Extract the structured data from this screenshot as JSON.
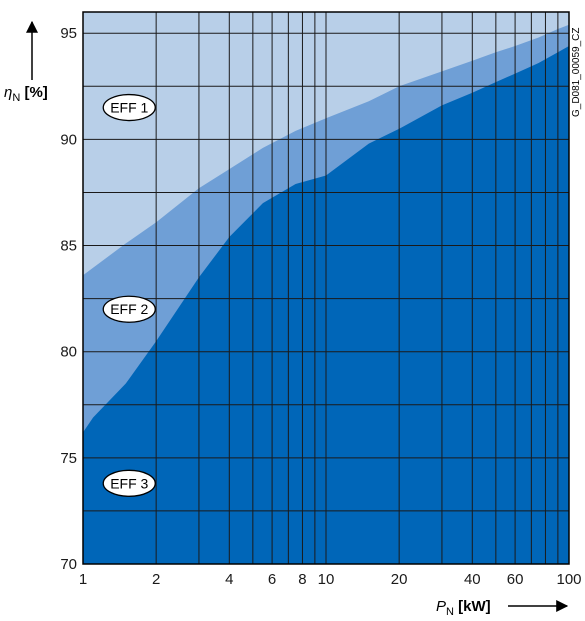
{
  "chart_data": {
    "type": "area",
    "x_scale": "log",
    "xlim": [
      1,
      100
    ],
    "ylim": [
      70,
      96
    ],
    "x_ticks": [
      1,
      2,
      4,
      6,
      8,
      10,
      20,
      40,
      60,
      100
    ],
    "x_tick_labels": [
      "1",
      "2",
      "4",
      "6",
      "8",
      "10",
      "20",
      "40",
      "60",
      "100"
    ],
    "x_gridlines": [
      1,
      2,
      3,
      4,
      5,
      6,
      7,
      8,
      9,
      10,
      20,
      30,
      40,
      50,
      60,
      70,
      80,
      90,
      100
    ],
    "y_ticks": [
      70,
      75,
      80,
      85,
      90,
      95
    ],
    "y_tick_labels": [
      "70",
      "75",
      "80",
      "85",
      "90",
      "95"
    ],
    "y_gridlines": [
      72.5,
      75,
      77.5,
      80,
      82.5,
      85,
      87.5,
      90,
      92.5,
      95
    ],
    "xlabel": {
      "symbol": "P",
      "sub": "N",
      "unit": "[kW]"
    },
    "ylabel": {
      "symbol": "η",
      "sub": "N",
      "unit": "[%]"
    },
    "grid": true,
    "regions": [
      {
        "label": "EFF 1",
        "color": "#b8cfe8",
        "label_at": [
          1.55,
          91.5
        ]
      },
      {
        "label": "EFF 2",
        "color": "#6f9fd6",
        "label_at": [
          1.55,
          82.0
        ]
      },
      {
        "label": "EFF 3",
        "color": "#0066b8",
        "label_at": [
          1.55,
          73.8
        ]
      }
    ],
    "boundaries": [
      {
        "name": "EFF1/EFF2",
        "x": [
          1,
          1.5,
          2,
          3,
          4,
          5.5,
          7.5,
          10,
          15,
          20,
          30,
          40,
          50,
          60,
          75,
          90,
          100
        ],
        "y": [
          83.6,
          85.1,
          86.1,
          87.7,
          88.6,
          89.6,
          90.4,
          91.0,
          91.8,
          92.5,
          93.2,
          93.7,
          94.1,
          94.4,
          94.8,
          95.2,
          95.4
        ]
      },
      {
        "name": "EFF2/EFF3",
        "x": [
          1,
          1.1,
          1.5,
          2,
          3,
          4,
          5.5,
          7.5,
          10,
          15,
          20,
          30,
          40,
          50,
          60,
          75,
          90,
          100
        ],
        "y": [
          76.2,
          76.9,
          78.5,
          80.5,
          83.5,
          85.4,
          87.0,
          87.9,
          88.3,
          89.8,
          90.5,
          91.6,
          92.2,
          92.7,
          93.1,
          93.6,
          94.1,
          94.4
        ]
      }
    ],
    "colors": {
      "grid": "#1a1a1a",
      "frame": "#000000"
    }
  },
  "figure_code": "G_D081_00059_CZ"
}
